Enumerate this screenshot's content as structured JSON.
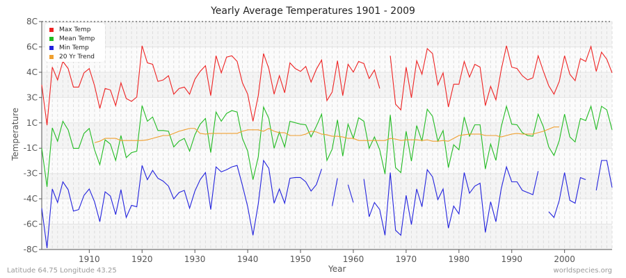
{
  "chart_data": {
    "type": "line",
    "title": "Yearly Average Temperatures 1901 - 2009",
    "xlabel": "Year",
    "ylabel": "Temperature",
    "xlim": [
      1901,
      2009
    ],
    "ylim": [
      -8,
      8
    ],
    "x_ticks": [
      "1910",
      "1920",
      "1930",
      "1940",
      "1950",
      "1960",
      "1970",
      "1980",
      "1990",
      "2000"
    ],
    "y_ticks": [
      "8C",
      "6C",
      "4C",
      "3C",
      "1C",
      "-1C",
      "-3C",
      "-4C",
      "-6C",
      "-8C"
    ],
    "y_tick_values": [
      8,
      6.22,
      4.44,
      2.67,
      0.89,
      -0.89,
      -2.67,
      -4.44,
      -6.22,
      -8
    ],
    "grid": true,
    "legend_position": "top-left",
    "start_year": 1901,
    "series": [
      {
        "name": "Max Temp",
        "color": "#ee2222",
        "values": [
          3.56,
          0.73,
          4.8,
          3.9,
          5.2,
          4.7,
          3.4,
          3.4,
          4.4,
          4.7,
          3.5,
          1.9,
          3.3,
          3.2,
          2.1,
          3.7,
          2.6,
          2.4,
          2.7,
          6.3,
          5.1,
          5.0,
          3.8,
          3.9,
          4.2,
          2.9,
          3.3,
          3.4,
          2.9,
          3.95,
          4.5,
          4.9,
          2.8,
          5.6,
          4.4,
          5.5,
          5.6,
          5.2,
          3.7,
          2.9,
          1.0,
          2.8,
          5.75,
          4.7,
          2.9,
          4.2,
          3.0,
          5.1,
          4.7,
          4.5,
          4.85,
          3.75,
          4.65,
          5.3,
          2.45,
          3.05,
          5.25,
          2.8,
          5.0,
          4.45,
          5.2,
          5.05,
          4.0,
          4.6,
          3.3,
          null,
          5.6,
          2.2,
          1.8,
          4.8,
          2.65,
          5.25,
          4.3,
          6.1,
          5.75,
          3.55,
          4.4,
          2.0,
          3.6,
          3.6,
          5.2,
          4.1,
          5.0,
          4.8,
          2.1,
          3.45,
          2.5,
          4.6,
          6.3,
          4.8,
          4.7,
          4.2,
          3.9,
          4.05,
          5.6,
          4.5,
          3.5,
          2.9,
          3.8,
          5.6,
          4.3,
          3.85,
          5.4,
          5.2,
          6.25,
          4.5,
          5.85,
          5.35,
          4.4
        ]
      },
      {
        "name": "Mean Temp",
        "color": "#22bb22",
        "values": [
          -0.88,
          -3.6,
          0.54,
          -0.4,
          1.0,
          0.4,
          -0.9,
          -0.9,
          0.15,
          0.5,
          -1.0,
          -2.05,
          -0.3,
          -0.6,
          -1.75,
          0.0,
          -1.55,
          -1.2,
          -1.1,
          2.1,
          1.0,
          1.3,
          0.35,
          0.35,
          0.3,
          -0.8,
          -0.4,
          -0.2,
          -1.1,
          0.05,
          0.8,
          1.2,
          -1.2,
          1.65,
          1.0,
          1.55,
          1.75,
          1.65,
          -0.2,
          -1.1,
          -3.1,
          -1.5,
          2.0,
          1.2,
          -0.9,
          0.25,
          -0.8,
          1.0,
          0.9,
          0.8,
          0.75,
          -0.1,
          0.65,
          1.5,
          -1.75,
          -0.95,
          1.1,
          -1.45,
          0.8,
          -0.2,
          1.25,
          1.0,
          -0.9,
          -0.1,
          -1.0,
          -2.7,
          1.45,
          -2.25,
          -2.6,
          0.3,
          -1.8,
          0.7,
          -0.4,
          1.85,
          1.35,
          -0.4,
          0.35,
          -2.25,
          -0.65,
          -1.0,
          1.3,
          -0.05,
          0.75,
          0.75,
          -2.35,
          -0.6,
          -1.75,
          0.6,
          2.05,
          0.8,
          0.75,
          0.2,
          0.0,
          -0.05,
          1.5,
          0.6,
          -0.8,
          -1.4,
          -0.35,
          1.5,
          -0.1,
          -0.45,
          1.2,
          1.05,
          2.05,
          0.4,
          2.05,
          1.8,
          0.4
        ]
      },
      {
        "name": "Min Temp",
        "color": "#2222dd",
        "values": [
          -5.1,
          -7.9,
          -3.75,
          -4.7,
          -3.25,
          -3.8,
          -5.3,
          -5.2,
          -4.2,
          -3.75,
          -4.65,
          -6.05,
          -3.95,
          -4.25,
          -5.55,
          -3.8,
          -5.75,
          -4.9,
          -5.0,
          -2.1,
          -3.1,
          -2.45,
          -3.0,
          -3.2,
          -3.55,
          -4.45,
          -4.0,
          -3.85,
          -5.1,
          -3.9,
          -3.1,
          -2.6,
          -5.2,
          -2.2,
          -2.55,
          -2.4,
          -2.2,
          -2.1,
          -3.5,
          -5.0,
          -7.0,
          -4.8,
          -1.75,
          -2.3,
          -4.75,
          -3.75,
          -4.75,
          -3.0,
          -2.95,
          -2.95,
          -3.25,
          -3.9,
          -3.45,
          -2.35,
          null,
          -4.95,
          -3.0,
          null,
          -3.45,
          -4.7,
          null,
          -3.05,
          -5.7,
          -4.7,
          -5.2,
          -7.0,
          -2.6,
          -6.65,
          -7.0,
          -4.2,
          -6.25,
          -3.75,
          -5.0,
          -2.4,
          -2.9,
          -4.5,
          -3.75,
          -6.5,
          -4.95,
          -5.5,
          -2.6,
          -4.05,
          -3.55,
          -3.35,
          -6.8,
          -4.65,
          -6.05,
          -3.75,
          -2.2,
          -3.25,
          -3.25,
          -3.85,
          -4.0,
          -4.15,
          -2.5,
          null,
          -5.35,
          -5.75,
          -4.55,
          -2.6,
          -4.55,
          -4.75,
          -2.95,
          -3.1,
          null,
          -3.85,
          -1.75,
          -1.75,
          -3.65
        ]
      },
      {
        "name": "20 Yr Trend",
        "color": "#f0a030",
        "values": [
          null,
          null,
          null,
          null,
          null,
          null,
          null,
          null,
          null,
          null,
          -0.5,
          -0.4,
          -0.2,
          -0.2,
          -0.2,
          -0.35,
          -0.35,
          -0.35,
          -0.35,
          -0.35,
          -0.3,
          -0.2,
          -0.1,
          0.0,
          0.0,
          0.15,
          0.3,
          0.4,
          0.5,
          0.5,
          0.15,
          0.1,
          0.15,
          0.15,
          0.15,
          0.15,
          0.15,
          0.15,
          0.3,
          0.4,
          0.4,
          0.4,
          0.3,
          0.5,
          0.3,
          0.2,
          0.2,
          0.0,
          0.0,
          0.0,
          0.1,
          0.3,
          0.25,
          0.1,
          0.05,
          -0.05,
          -0.05,
          -0.1,
          -0.2,
          -0.2,
          -0.35,
          -0.35,
          -0.35,
          -0.35,
          -0.35,
          -0.35,
          -0.2,
          -0.25,
          -0.35,
          -0.3,
          -0.3,
          -0.3,
          -0.35,
          -0.3,
          -0.4,
          -0.4,
          -0.35,
          -0.4,
          -0.2,
          0.0,
          0.05,
          0.1,
          0.1,
          0.1,
          0.0,
          0.0,
          0.0,
          -0.1,
          0.0,
          0.1,
          0.15,
          0.1,
          0.1,
          0.1,
          0.2,
          0.3,
          0.45,
          0.6,
          0.6,
          null,
          null,
          null,
          null,
          null,
          null,
          null,
          null,
          null,
          null
        ]
      }
    ]
  },
  "legend": {
    "items": [
      {
        "label": "Max Temp",
        "color": "#ee2222"
      },
      {
        "label": "Mean Temp",
        "color": "#22bb22"
      },
      {
        "label": "Min Temp",
        "color": "#2222dd"
      },
      {
        "label": "20 Yr Trend",
        "color": "#f0a030"
      }
    ]
  },
  "footer": {
    "location": "Latitude 64.75 Longitude 43.25",
    "source": "worldspecies.org"
  }
}
